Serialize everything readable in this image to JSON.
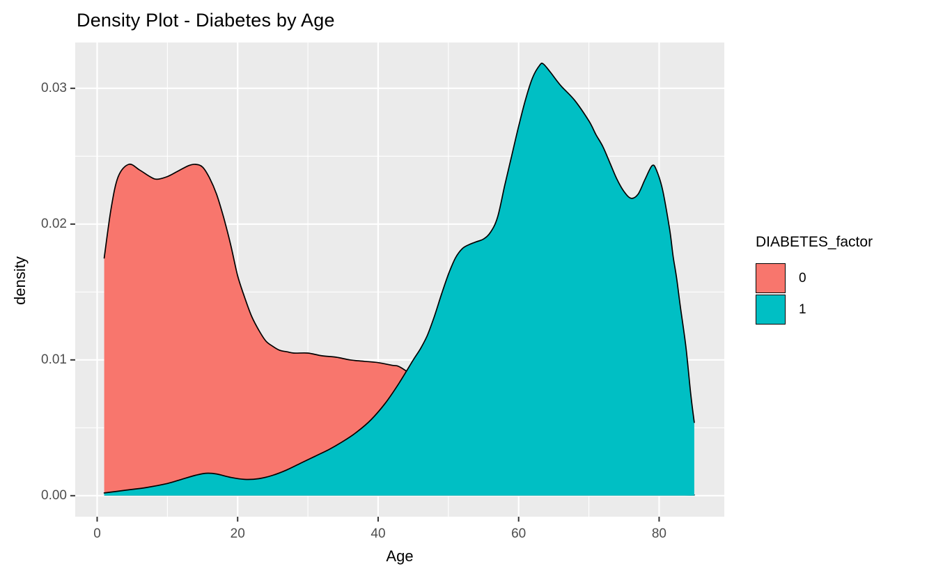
{
  "title": "Density Plot - Diabetes by Age",
  "axes": {
    "x_label": "Age",
    "y_label": "density"
  },
  "legend": {
    "title": "DIABETES_factor",
    "items": [
      {
        "label": "0",
        "color": "#F8766D"
      },
      {
        "label": "1",
        "color": "#00BFC4"
      }
    ]
  },
  "colors": {
    "panel_background": "#EBEBEB",
    "gridline": "#FFFFFF",
    "tick_mark": "#333333",
    "tick_label": "#4d4d4d",
    "curve_outline": "#000000",
    "series0_fill": "#F8766D",
    "series1_fill": "#00BFC4"
  },
  "chart_data": {
    "type": "area",
    "subtype": "density",
    "title": "Density Plot - Diabetes by Age",
    "xlabel": "Age",
    "ylabel": "density",
    "xlim": [
      -3.2,
      89.2
    ],
    "ylim": [
      0,
      0.0334
    ],
    "grid": true,
    "legend_title": "DIABETES_factor",
    "legend_position": "right",
    "x_major_ticks": [
      0,
      20,
      40,
      60,
      80
    ],
    "x_minor_ticks": [
      10,
      30,
      50,
      70
    ],
    "y_major_ticks": [
      0,
      0.01,
      0.02,
      0.03
    ],
    "y_tick_labels": [
      "0.00",
      "0.01",
      "0.02",
      "0.03"
    ],
    "y_minor_ticks": [
      0.005,
      0.015,
      0.025
    ],
    "series": [
      {
        "name": "0",
        "color": "#F8766D",
        "points": [
          [
            1,
            0.0175
          ],
          [
            2,
            0.0212
          ],
          [
            3,
            0.0235
          ],
          [
            4.5,
            0.0244
          ],
          [
            6,
            0.024
          ],
          [
            7.5,
            0.0235
          ],
          [
            8.5,
            0.0233
          ],
          [
            10,
            0.0235
          ],
          [
            11.5,
            0.0239
          ],
          [
            13,
            0.0243
          ],
          [
            14,
            0.0244
          ],
          [
            15,
            0.0242
          ],
          [
            16,
            0.0234
          ],
          [
            17,
            0.0222
          ],
          [
            18,
            0.0205
          ],
          [
            19,
            0.0185
          ],
          [
            20,
            0.0162
          ],
          [
            21,
            0.0146
          ],
          [
            22,
            0.0132
          ],
          [
            23,
            0.0122
          ],
          [
            24,
            0.0114
          ],
          [
            25,
            0.011
          ],
          [
            26,
            0.0107
          ],
          [
            27,
            0.0106
          ],
          [
            28,
            0.0105
          ],
          [
            30,
            0.0105
          ],
          [
            32,
            0.0103
          ],
          [
            34,
            0.0102
          ],
          [
            36,
            0.01
          ],
          [
            38,
            0.0099
          ],
          [
            40,
            0.0098
          ],
          [
            42,
            0.0096
          ],
          [
            43,
            0.0095
          ],
          [
            45,
            0.0088
          ],
          [
            48,
            0.0075
          ],
          [
            51,
            0.0061
          ],
          [
            54,
            0.0048
          ],
          [
            57,
            0.0036
          ],
          [
            60,
            0.0026
          ],
          [
            64,
            0.0017
          ],
          [
            68,
            0.001
          ],
          [
            72,
            0.0006
          ],
          [
            76,
            0.0003
          ],
          [
            80,
            0.0001
          ],
          [
            85,
            5e-05
          ]
        ]
      },
      {
        "name": "1",
        "color": "#00BFC4",
        "points": [
          [
            1,
            0.0002
          ],
          [
            4,
            0.0004
          ],
          [
            7,
            0.0006
          ],
          [
            10,
            0.0009
          ],
          [
            12,
            0.0012
          ],
          [
            14,
            0.0015
          ],
          [
            15.5,
            0.00165
          ],
          [
            17,
            0.0016
          ],
          [
            19,
            0.00135
          ],
          [
            21,
            0.0012
          ],
          [
            23,
            0.00125
          ],
          [
            25,
            0.0015
          ],
          [
            27,
            0.0019
          ],
          [
            29,
            0.0024
          ],
          [
            31,
            0.0029
          ],
          [
            33,
            0.0034
          ],
          [
            35,
            0.004
          ],
          [
            37,
            0.0047
          ],
          [
            39,
            0.0056
          ],
          [
            41,
            0.0068
          ],
          [
            43,
            0.0083
          ],
          [
            45,
            0.01
          ],
          [
            46,
            0.0108
          ],
          [
            47,
            0.0118
          ],
          [
            48,
            0.0132
          ],
          [
            49,
            0.0148
          ],
          [
            50,
            0.0163
          ],
          [
            51,
            0.0175
          ],
          [
            52,
            0.0182
          ],
          [
            53,
            0.0185
          ],
          [
            54,
            0.0187
          ],
          [
            55,
            0.0189
          ],
          [
            56,
            0.0194
          ],
          [
            57,
            0.0205
          ],
          [
            58,
            0.0228
          ],
          [
            59,
            0.025
          ],
          [
            60,
            0.0272
          ],
          [
            61,
            0.0292
          ],
          [
            62,
            0.0308
          ],
          [
            63,
            0.0317
          ],
          [
            63.5,
            0.0318
          ],
          [
            64.5,
            0.0312
          ],
          [
            66,
            0.0302
          ],
          [
            68,
            0.0291
          ],
          [
            70,
            0.0276
          ],
          [
            71,
            0.0266
          ],
          [
            72,
            0.0257
          ],
          [
            73,
            0.0245
          ],
          [
            74,
            0.0233
          ],
          [
            75,
            0.0224
          ],
          [
            76,
            0.0219
          ],
          [
            77,
            0.0222
          ],
          [
            78,
            0.0233
          ],
          [
            79,
            0.0243
          ],
          [
            79.6,
            0.024
          ],
          [
            80.5,
            0.0225
          ],
          [
            81.5,
            0.0196
          ],
          [
            82,
            0.0176
          ],
          [
            82.5,
            0.016
          ],
          [
            83,
            0.014
          ],
          [
            83.8,
            0.011
          ],
          [
            84.5,
            0.0075
          ],
          [
            85,
            0.0054
          ]
        ]
      }
    ]
  }
}
